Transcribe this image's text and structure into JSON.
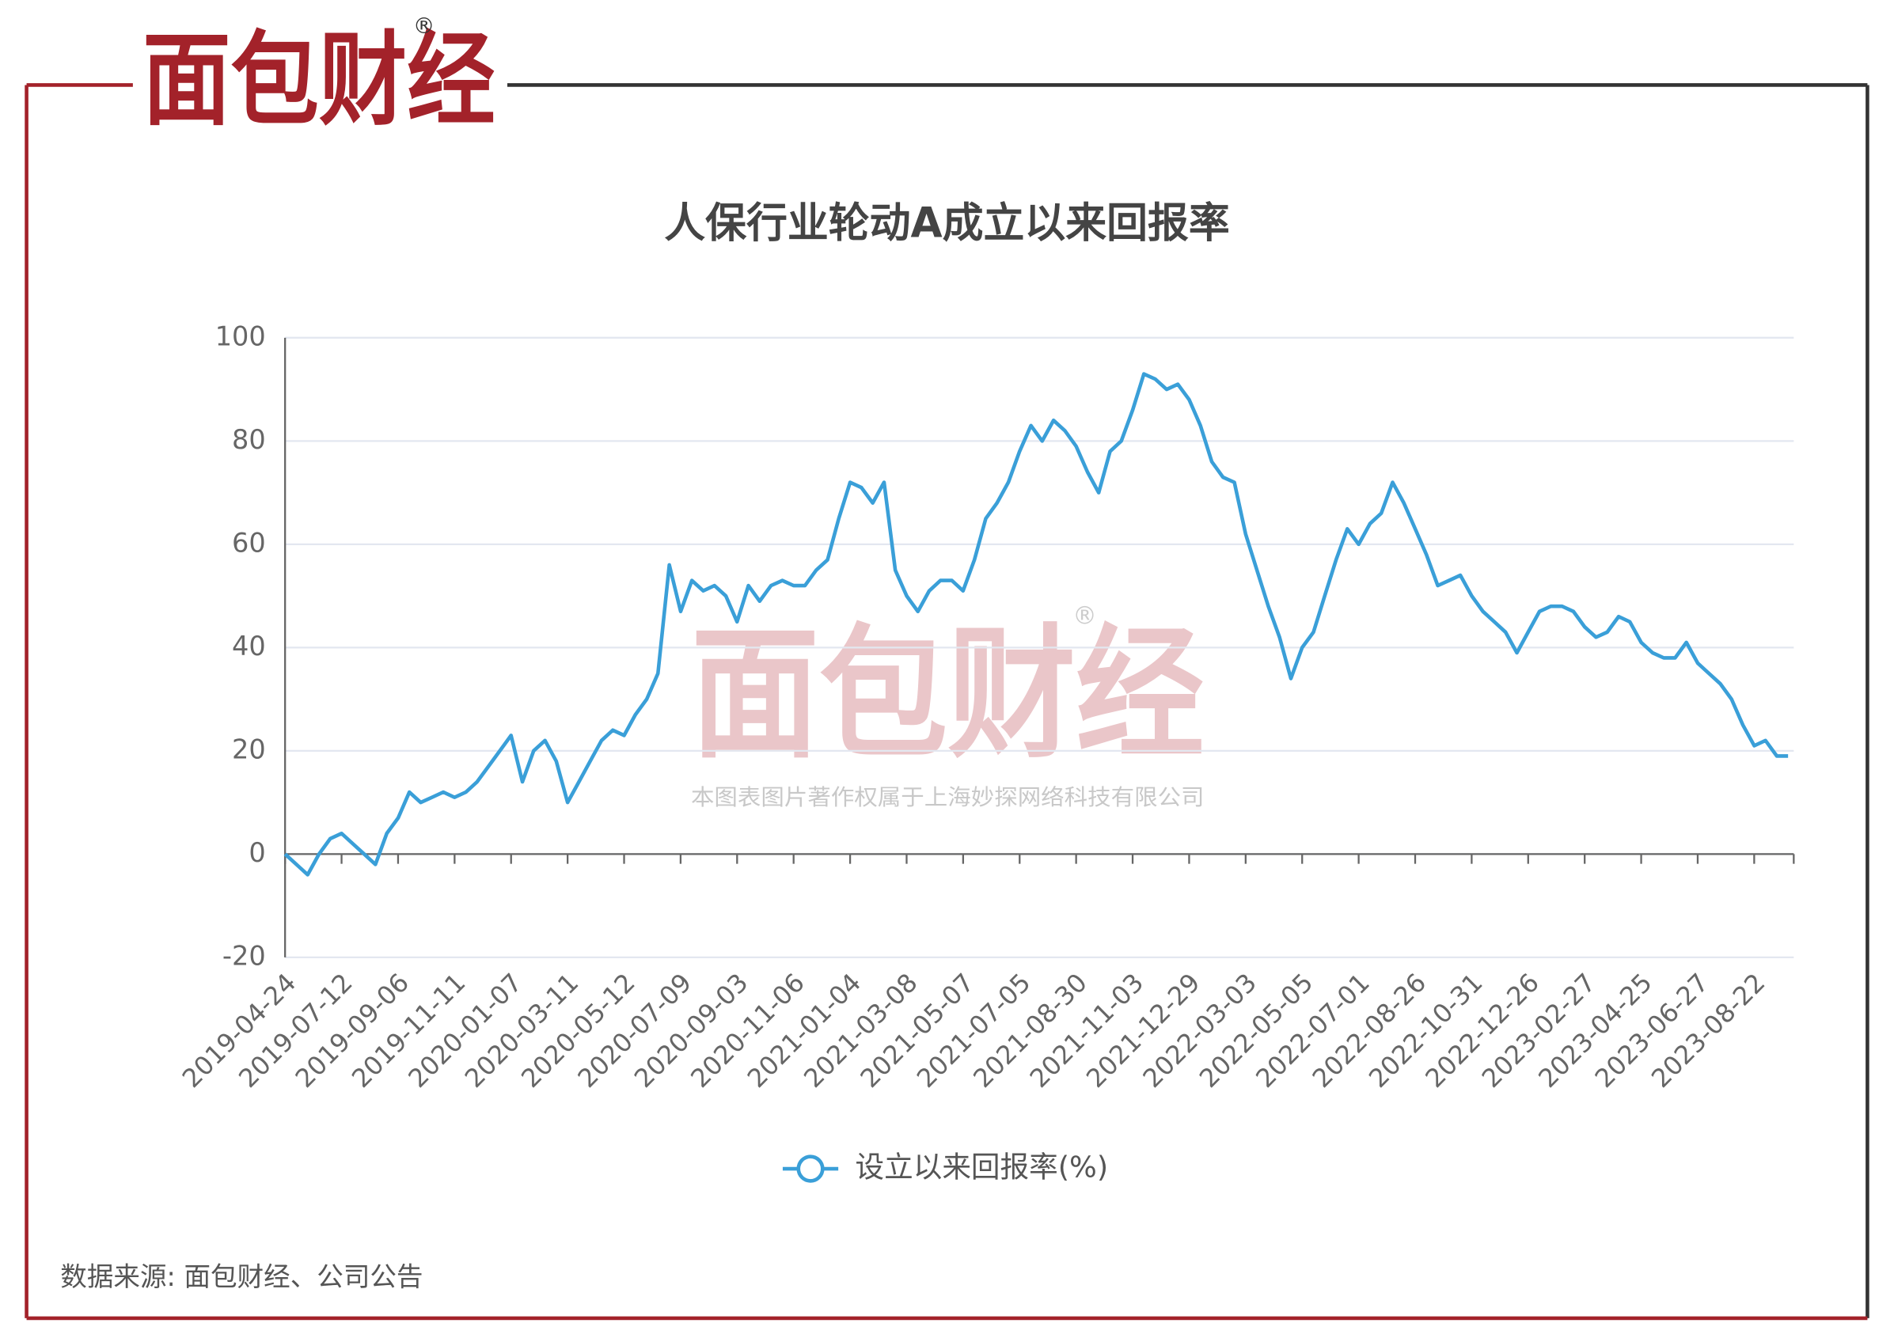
{
  "header": {
    "logo": "面包财经",
    "registered": "®"
  },
  "watermark": {
    "logo": "面包财经",
    "registered": "®",
    "copyright": "本图表图片著作权属于上海妙探网络科技有限公司"
  },
  "footer": {
    "source": "数据来源: 面包财经、公司公告"
  },
  "chart_data": {
    "type": "line",
    "title": "人保行业轮动A成立以来回报率",
    "categories": [
      "2019-04-24",
      null,
      null,
      null,
      null,
      "2019-07-12",
      null,
      null,
      null,
      null,
      "2019-09-06",
      null,
      null,
      null,
      null,
      "2019-11-11",
      null,
      null,
      null,
      null,
      "2020-01-07",
      null,
      null,
      null,
      null,
      "2020-03-11",
      null,
      null,
      null,
      null,
      "2020-05-12",
      null,
      null,
      null,
      null,
      "2020-07-09",
      null,
      null,
      null,
      null,
      "2020-09-03",
      null,
      null,
      null,
      null,
      "2020-11-06",
      null,
      null,
      null,
      null,
      "2021-01-04",
      null,
      null,
      null,
      null,
      "2021-03-08",
      null,
      null,
      null,
      null,
      "2021-05-07",
      null,
      null,
      null,
      null,
      "2021-07-05",
      null,
      null,
      null,
      null,
      "2021-08-30",
      null,
      null,
      null,
      null,
      "2021-11-03",
      null,
      null,
      null,
      null,
      "2021-12-29",
      null,
      null,
      null,
      null,
      "2022-03-03",
      null,
      null,
      null,
      null,
      "2022-05-05",
      null,
      null,
      null,
      null,
      "2022-07-01",
      null,
      null,
      null,
      null,
      "2022-08-26",
      null,
      null,
      null,
      null,
      "2022-10-31",
      null,
      null,
      null,
      null,
      "2022-12-26",
      null,
      null,
      null,
      null,
      "2023-02-27",
      null,
      null,
      null,
      null,
      "2023-04-25",
      null,
      null,
      null,
      null,
      "2023-06-27",
      null,
      null,
      null,
      null,
      "2023-08-22",
      null,
      null,
      null
    ],
    "series": [
      {
        "name": "设立以来回报率(%)",
        "color": "#3a9fd8",
        "values": [
          0,
          -2,
          -4,
          0,
          3,
          4,
          2,
          0,
          -2,
          4,
          7,
          12,
          10,
          11,
          12,
          11,
          12,
          14,
          17,
          20,
          23,
          14,
          20,
          22,
          18,
          10,
          14,
          18,
          22,
          24,
          23,
          27,
          30,
          35,
          56,
          47,
          53,
          51,
          52,
          50,
          45,
          52,
          49,
          52,
          53,
          52,
          52,
          55,
          57,
          65,
          72,
          71,
          68,
          72,
          55,
          50,
          47,
          51,
          53,
          53,
          51,
          57,
          65,
          68,
          72,
          78,
          83,
          80,
          84,
          82,
          79,
          74,
          70,
          78,
          80,
          86,
          93,
          92,
          90,
          91,
          88,
          83,
          76,
          73,
          72,
          62,
          55,
          48,
          42,
          34,
          40,
          43,
          50,
          57,
          63,
          60,
          64,
          66,
          72,
          68,
          63,
          58,
          52,
          53,
          54,
          50,
          47,
          45,
          43,
          39,
          43,
          47,
          48,
          48,
          47,
          44,
          42,
          43,
          46,
          45,
          41,
          39,
          38,
          38,
          41,
          37,
          35,
          33,
          30,
          25,
          21,
          22,
          19,
          19
        ]
      }
    ],
    "ylim": [
      -20,
      100
    ],
    "yticks": [
      -20,
      0,
      20,
      40,
      60,
      80,
      100
    ],
    "grid": true,
    "legend": "bottom"
  }
}
